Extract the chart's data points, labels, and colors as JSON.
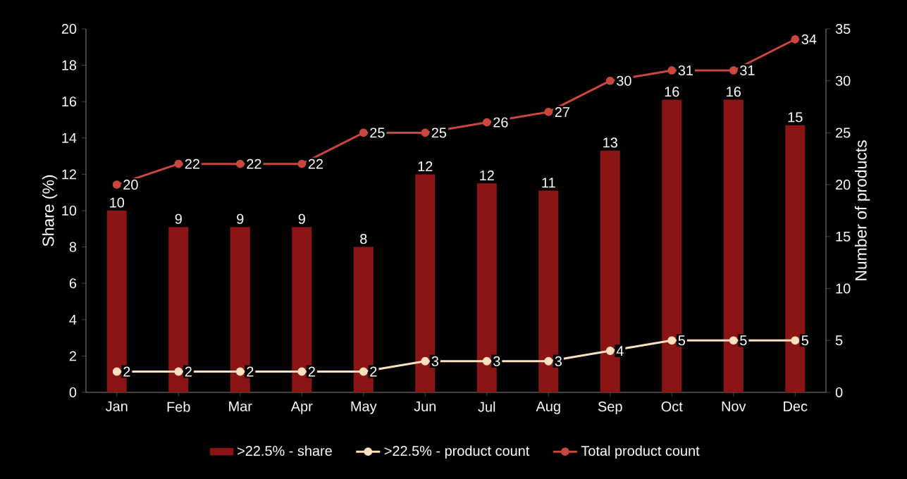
{
  "chart_data": {
    "type": "bar",
    "categories": [
      "Jan",
      "Feb",
      "Mar",
      "Apr",
      "May",
      "Jun",
      "Jul",
      "Aug",
      "Sep",
      "Oct",
      "Nov",
      "Dec"
    ],
    "series": [
      {
        "name": ">22.5% - share",
        "color": "#8b1515",
        "values": [
          10.0,
          9.1,
          9.1,
          9.1,
          8.0,
          12.0,
          11.5,
          11.1,
          13.3,
          16.1,
          16.1,
          14.7
        ],
        "value_labels": [
          "10",
          "9",
          "9",
          "9",
          "8",
          "12",
          "12",
          "11",
          "13",
          "16",
          "16",
          "15"
        ]
      },
      {
        "name": ">22.5% - product count",
        "type": "line",
        "axis": "y2",
        "color": "#fde0bd",
        "values": [
          2,
          2,
          2,
          2,
          2,
          3,
          3,
          3,
          4,
          5,
          5,
          5
        ],
        "value_labels": [
          "2",
          "2",
          "2",
          "2",
          "2",
          "3",
          "3",
          "3",
          "4",
          "5",
          "5",
          "5"
        ]
      },
      {
        "name": "Total product count",
        "type": "line",
        "axis": "y2",
        "color": "#c9473f",
        "values": [
          20,
          22,
          22,
          22,
          25,
          25,
          26,
          27,
          30,
          31,
          31,
          34
        ],
        "value_labels": [
          "20",
          "22",
          "22",
          "22",
          "25",
          "25",
          "26",
          "27",
          "30",
          "31",
          "31",
          "34"
        ]
      }
    ],
    "ylabel": "Share (%)",
    "y2label": "Number of products",
    "ylim": [
      0,
      20
    ],
    "yticks": [
      0,
      2,
      4,
      6,
      8,
      10,
      12,
      14,
      16,
      18,
      20
    ],
    "y2lim": [
      0,
      35
    ],
    "y2ticks": [
      0,
      5,
      10,
      15,
      20,
      25,
      30,
      35
    ],
    "legend": "bottom",
    "marker": "circle"
  }
}
